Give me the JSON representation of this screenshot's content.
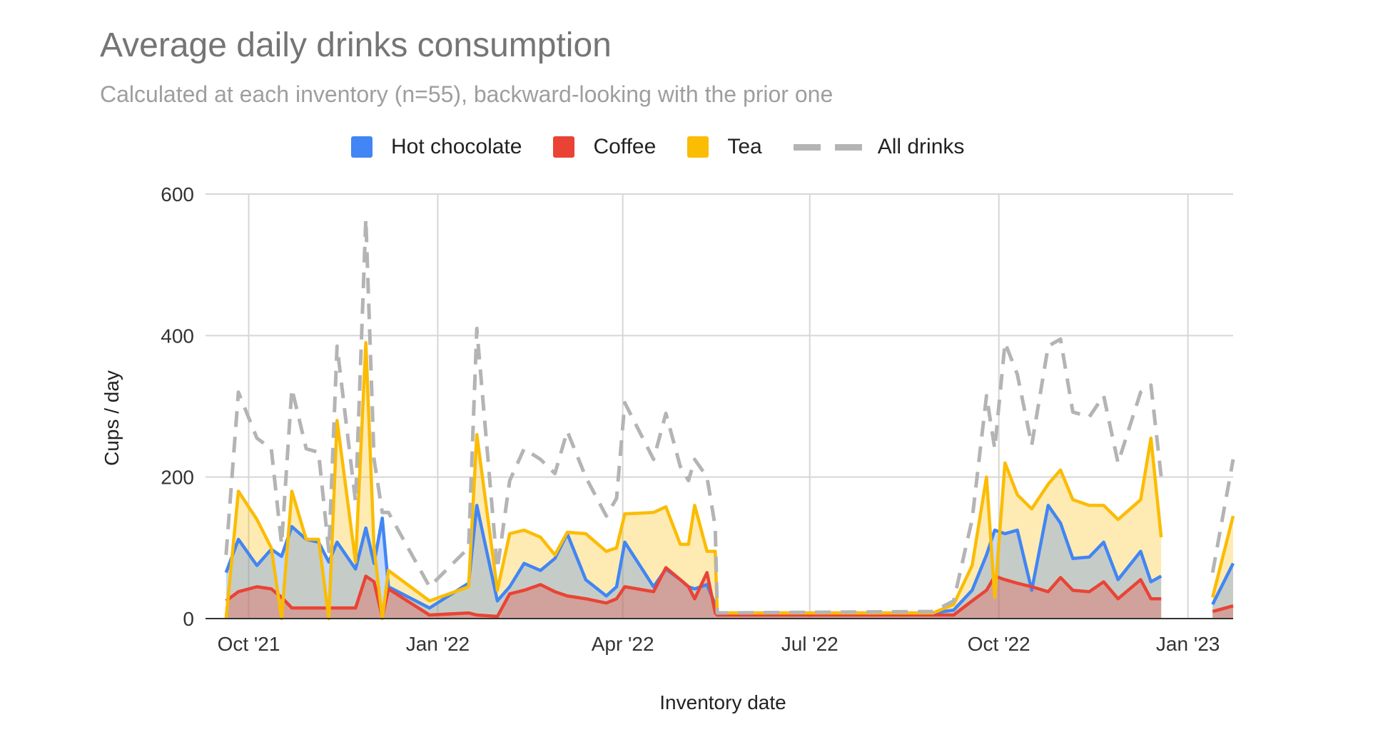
{
  "chart_data": {
    "type": "area",
    "title": "Average daily drinks consumption",
    "subtitle": "Calculated at each inventory (n=55), backward-looking with the prior one",
    "xlabel": "Inventory date",
    "ylabel": "Cups / day",
    "ylim": [
      0,
      600
    ],
    "xlim": [
      "2021-09-10",
      "2023-01-23"
    ],
    "yticks": [
      0,
      200,
      400,
      600
    ],
    "xticks": [
      {
        "date": "2021-10-01",
        "label": "Oct '21"
      },
      {
        "date": "2022-01-01",
        "label": "Jan '22"
      },
      {
        "date": "2022-04-01",
        "label": "Apr '22"
      },
      {
        "date": "2022-07-01",
        "label": "Jul '22"
      },
      {
        "date": "2022-10-01",
        "label": "Oct '22"
      },
      {
        "date": "2023-01-01",
        "label": "Jan '23"
      }
    ],
    "grid": true,
    "legend_position": "top",
    "series": [
      {
        "name": "Hot chocolate",
        "key": "hot_chocolate",
        "color": "#4285f4",
        "style": "area",
        "fill": "#c6d6f3"
      },
      {
        "name": "Coffee",
        "key": "coffee",
        "color": "#ea4335",
        "style": "area",
        "fill": "#f0a88c"
      },
      {
        "name": "Tea",
        "key": "tea",
        "color": "#fbbc04",
        "style": "area",
        "fill": "#fde7b0"
      },
      {
        "name": "All drinks",
        "key": "all",
        "color": "#b4b4b4",
        "style": "dashed"
      }
    ],
    "x": [
      "2021-09-20",
      "2021-09-26",
      "2021-10-05",
      "2021-10-12",
      "2021-10-17",
      "2021-10-22",
      "2021-10-29",
      "2021-11-04",
      "2021-11-09",
      "2021-11-13",
      "2021-11-22",
      "2021-11-27",
      "2021-12-01",
      "2021-12-05",
      "2021-12-08",
      "2021-12-28",
      "2022-01-16",
      "2022-01-20",
      "2022-01-30",
      "2022-02-05",
      "2022-02-12",
      "2022-02-20",
      "2022-02-27",
      "2022-03-05",
      "2022-03-14",
      "2022-03-24",
      "2022-03-29",
      "2022-04-02",
      "2022-04-16",
      "2022-04-22",
      "2022-04-29",
      "2022-05-03",
      "2022-05-06",
      "2022-05-12",
      "2022-05-16",
      "2022-05-17",
      "2022-08-30",
      "2022-09-09",
      "2022-09-18",
      "2022-09-25",
      "2022-09-29",
      "2022-10-04",
      "2022-10-10",
      "2022-10-17",
      "2022-10-25",
      "2022-10-31",
      "2022-11-06",
      "2022-11-14",
      "2022-11-21",
      "2022-11-28",
      "2022-12-09",
      "2022-12-14",
      "2022-12-19",
      "2022-12-30",
      "2023-01-13",
      "2023-01-23"
    ],
    "values": {
      "hot_chocolate": [
        65,
        112,
        75,
        98,
        88,
        130,
        112,
        108,
        80,
        108,
        70,
        128,
        78,
        142,
        45,
        15,
        50,
        160,
        25,
        45,
        78,
        68,
        85,
        120,
        55,
        32,
        45,
        108,
        45,
        70,
        55,
        45,
        42,
        48,
        20,
        8,
        8,
        12,
        40,
        90,
        125,
        120,
        125,
        40,
        160,
        135,
        85,
        87,
        108,
        55,
        95,
        52,
        60,
        null,
        20,
        78
      ],
      "coffee": [
        25,
        38,
        45,
        42,
        30,
        15,
        15,
        15,
        15,
        15,
        15,
        60,
        52,
        2,
        42,
        5,
        8,
        5,
        3,
        35,
        40,
        48,
        38,
        32,
        28,
        22,
        28,
        45,
        38,
        72,
        55,
        45,
        28,
        65,
        8,
        5,
        5,
        5,
        25,
        40,
        60,
        55,
        50,
        45,
        38,
        58,
        40,
        38,
        52,
        28,
        55,
        28,
        28,
        null,
        10,
        18
      ],
      "tea": [
        0,
        180,
        140,
        100,
        0,
        180,
        112,
        112,
        0,
        280,
        80,
        390,
        100,
        0,
        68,
        25,
        45,
        260,
        40,
        120,
        125,
        115,
        90,
        122,
        120,
        95,
        100,
        148,
        150,
        158,
        105,
        105,
        160,
        95,
        95,
        8,
        8,
        20,
        75,
        200,
        30,
        220,
        175,
        155,
        190,
        210,
        168,
        160,
        160,
        140,
        168,
        255,
        115,
        null,
        30,
        145
      ],
      "all": [
        90,
        320,
        255,
        240,
        105,
        325,
        240,
        235,
        95,
        385,
        165,
        565,
        225,
        150,
        150,
        45,
        100,
        410,
        70,
        195,
        240,
        225,
        205,
        265,
        200,
        145,
        170,
        305,
        225,
        290,
        215,
        195,
        225,
        200,
        130,
        8,
        10,
        25,
        140,
        315,
        240,
        390,
        345,
        245,
        385,
        395,
        292,
        285,
        315,
        220,
        320,
        330,
        200,
        null,
        65,
        225
      ]
    }
  }
}
